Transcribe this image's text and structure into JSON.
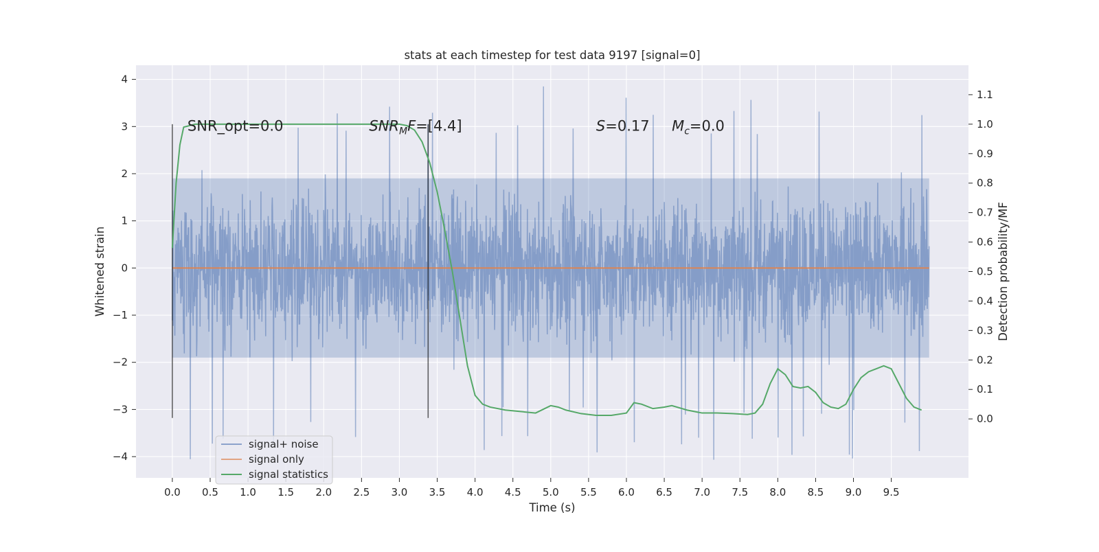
{
  "chart_data": {
    "type": "line",
    "title": "stats at each timestep for test data 9197 [signal=0]",
    "xlabel": "Time (s)",
    "ylabel": "Whitened strain",
    "ylabel_right": "Detection probability/MF",
    "xlim": [
      -0.48,
      10.52
    ],
    "ylim": [
      -4.45,
      4.3
    ],
    "ylim_right": [
      -0.2,
      1.2
    ],
    "x_ticks": [
      0.0,
      0.5,
      1.0,
      1.5,
      2.0,
      2.5,
      3.0,
      3.5,
      4.0,
      4.5,
      5.0,
      5.5,
      6.0,
      6.5,
      7.0,
      7.5,
      8.0,
      8.5,
      9.0,
      9.5
    ],
    "x_tick_labels": [
      "0.0",
      "0.5",
      "1.0",
      "1.5",
      "2.0",
      "2.5",
      "3.0",
      "3.5",
      "4.0",
      "4.5",
      "5.0",
      "5.5",
      "6.0",
      "6.5",
      "7.0",
      "7.5",
      "8.0",
      "8.5",
      "9.0",
      "9.5"
    ],
    "y_ticks": [
      -4,
      -3,
      -2,
      -1,
      0,
      1,
      2,
      3,
      4
    ],
    "y_tick_labels": [
      "−4",
      "−3",
      "−2",
      "−1",
      "0",
      "1",
      "2",
      "3",
      "4"
    ],
    "y_right_ticks": [
      0.0,
      0.1,
      0.2,
      0.3,
      0.4,
      0.5,
      0.6,
      0.7,
      0.8,
      0.9,
      1.0,
      1.1
    ],
    "y_right_tick_labels": [
      "0.0",
      "0.1",
      "0.2",
      "0.3",
      "0.4",
      "0.5",
      "0.6",
      "0.7",
      "0.8",
      "0.9",
      "1.0",
      "1.1"
    ],
    "grid": true,
    "legend_position": "lower-left",
    "series": [
      {
        "name": "signal+ noise",
        "axis": "left",
        "color": "#4c72b0",
        "style": "noise band",
        "x_range": [
          0.0,
          10.0
        ],
        "envelope_upper": 3.9,
        "envelope_lower": -4.1,
        "typical_range": [
          -1.9,
          1.9
        ]
      },
      {
        "name": "signal only",
        "axis": "left",
        "color": "#dd8452",
        "x": [
          0.0,
          10.0
        ],
        "y": [
          0.0,
          0.0
        ]
      },
      {
        "name": "signal statistics",
        "axis": "left_right",
        "color": "#55a868",
        "x": [
          0.0,
          0.05,
          0.1,
          0.15,
          0.3,
          0.6,
          1.0,
          2.0,
          3.0,
          3.1,
          3.2,
          3.3,
          3.4,
          3.5,
          3.6,
          3.7,
          3.8,
          3.9,
          4.0,
          4.1,
          4.2,
          4.4,
          4.6,
          4.8,
          5.0,
          5.1,
          5.2,
          5.4,
          5.6,
          5.8,
          6.0,
          6.1,
          6.2,
          6.35,
          6.5,
          6.6,
          6.8,
          7.0,
          7.2,
          7.4,
          7.6,
          7.7,
          7.8,
          7.9,
          8.0,
          8.1,
          8.2,
          8.3,
          8.4,
          8.5,
          8.6,
          8.7,
          8.8,
          8.9,
          9.0,
          9.1,
          9.2,
          9.3,
          9.4,
          9.5,
          9.6,
          9.7,
          9.8,
          9.9
        ],
        "y": [
          0.58,
          0.8,
          0.93,
          0.99,
          1.0,
          1.0,
          1.0,
          1.0,
          1.0,
          0.995,
          0.98,
          0.94,
          0.87,
          0.77,
          0.64,
          0.5,
          0.34,
          0.18,
          0.08,
          0.05,
          0.04,
          0.03,
          0.025,
          0.02,
          0.045,
          0.04,
          0.03,
          0.018,
          0.012,
          0.012,
          0.02,
          0.055,
          0.05,
          0.035,
          0.04,
          0.045,
          0.03,
          0.02,
          0.02,
          0.018,
          0.015,
          0.02,
          0.05,
          0.12,
          0.17,
          0.15,
          0.11,
          0.105,
          0.11,
          0.09,
          0.055,
          0.04,
          0.035,
          0.05,
          0.1,
          0.14,
          0.16,
          0.17,
          0.18,
          0.17,
          0.12,
          0.07,
          0.04,
          0.03
        ]
      }
    ],
    "vertical_markers": [
      {
        "x": 0.0,
        "y_from": -3.18,
        "y_to": 3.05
      },
      {
        "x": 3.38,
        "y_from": -3.18,
        "y_to": 3.05
      }
    ],
    "annotations": [
      {
        "parts": [
          {
            "text": "SNR_opt=0.0",
            "italic": false
          }
        ],
        "x": 0.2,
        "y": 3.0
      },
      {
        "parts": [
          {
            "text": "SNR",
            "italic": true
          },
          {
            "text": "M",
            "italic": true,
            "sub": true
          },
          {
            "text": "F",
            "italic": true
          },
          {
            "text": "=[4.4]",
            "italic": false
          }
        ],
        "x": 2.6,
        "y": 3.0
      },
      {
        "parts": [
          {
            "text": "S",
            "italic": true
          },
          {
            "text": "=0.17",
            "italic": false
          }
        ],
        "x": 5.6,
        "y": 3.0
      },
      {
        "parts": [
          {
            "text": "M",
            "italic": true
          },
          {
            "text": "c",
            "italic": true,
            "sub": true
          },
          {
            "text": "=0.0",
            "italic": false
          }
        ],
        "x": 6.6,
        "y": 3.0
      }
    ],
    "colors": {
      "background": "#eaeaf2",
      "grid": "#ffffff",
      "noise": "#4c72b0",
      "signal": "#dd8452",
      "statistics": "#55a868",
      "marker": "#000000"
    }
  }
}
